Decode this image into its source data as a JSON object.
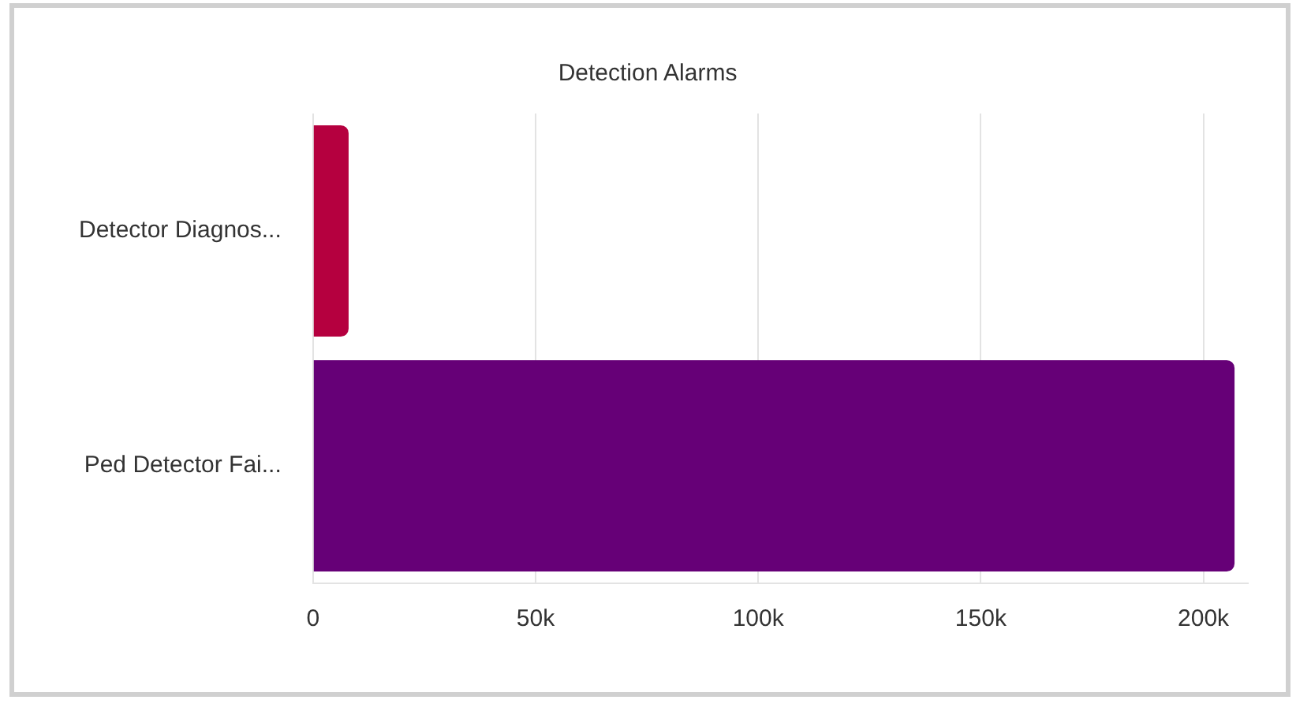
{
  "chart_data": {
    "type": "bar",
    "title": "Detection Alarms",
    "orientation": "horizontal",
    "categories": [
      "Detector Diagnos...",
      "Ped Detector Fai..."
    ],
    "values": [
      8000,
      207000
    ],
    "colors": [
      "#b5003f",
      "#660077"
    ],
    "xlim": [
      0,
      210000
    ],
    "xticks": [
      {
        "value": 0,
        "label": "0"
      },
      {
        "value": 50000,
        "label": "50k"
      },
      {
        "value": 100000,
        "label": "100k"
      },
      {
        "value": 150000,
        "label": "150k"
      },
      {
        "value": 200000,
        "label": "200k"
      }
    ],
    "grid": "x",
    "legend": false
  }
}
